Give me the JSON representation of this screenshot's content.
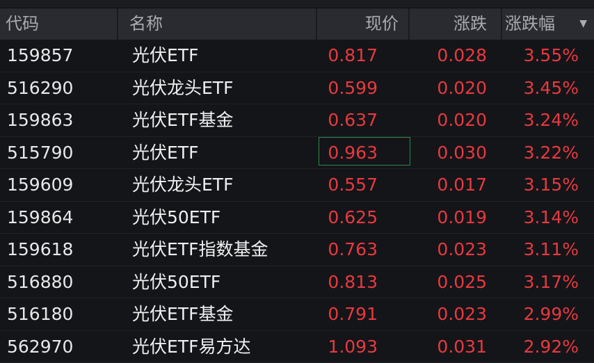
{
  "header": {
    "code": "代码",
    "name": "名称",
    "price": "现价",
    "change": "涨跌",
    "pct": "涨跌幅",
    "sort_icon": "▼"
  },
  "colors": {
    "up": "#e8393f",
    "selection": "#2f8a4a"
  },
  "selected_row": 3,
  "rows": [
    {
      "code": "159857",
      "name": "光伏ETF",
      "price": "0.817",
      "change": "0.028",
      "pct": "3.55%"
    },
    {
      "code": "516290",
      "name": "光伏龙头ETF",
      "price": "0.599",
      "change": "0.020",
      "pct": "3.45%"
    },
    {
      "code": "159863",
      "name": "光伏ETF基金",
      "price": "0.637",
      "change": "0.020",
      "pct": "3.24%"
    },
    {
      "code": "515790",
      "name": "光伏ETF",
      "price": "0.963",
      "change": "0.030",
      "pct": "3.22%"
    },
    {
      "code": "159609",
      "name": "光伏龙头ETF",
      "price": "0.557",
      "change": "0.017",
      "pct": "3.15%"
    },
    {
      "code": "159864",
      "name": "光伏50ETF",
      "price": "0.625",
      "change": "0.019",
      "pct": "3.14%"
    },
    {
      "code": "159618",
      "name": "光伏ETF指数基金",
      "price": "0.763",
      "change": "0.023",
      "pct": "3.11%"
    },
    {
      "code": "516880",
      "name": "光伏50ETF",
      "price": "0.813",
      "change": "0.025",
      "pct": "3.17%"
    },
    {
      "code": "516180",
      "name": "光伏ETF基金",
      "price": "0.791",
      "change": "0.023",
      "pct": "2.99%"
    },
    {
      "code": "562970",
      "name": "光伏ETF易方达",
      "price": "1.093",
      "change": "0.031",
      "pct": "2.92%"
    }
  ]
}
